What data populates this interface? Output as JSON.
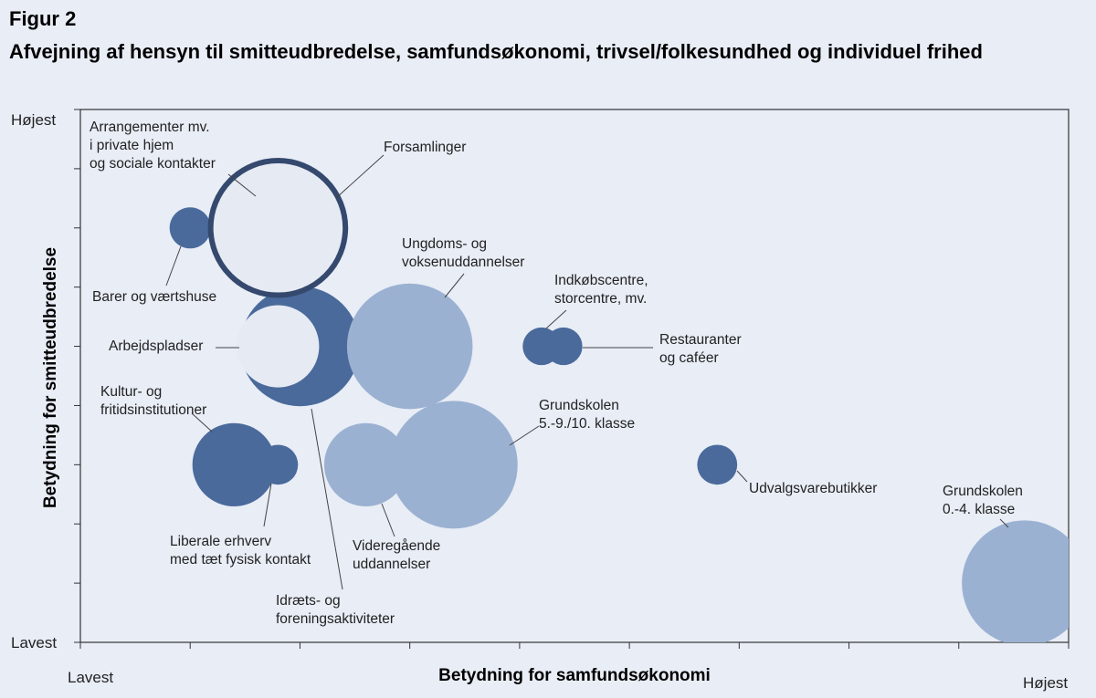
{
  "figure_label": "Figur 2",
  "title": "Afvejning af hensyn til smitteudbredelse, samfundsøkonomi, trivsel/folkesundhed og individuel frihed",
  "colors": {
    "background": "#e8edf6",
    "plot_background": "#e8edf6",
    "dark_blue": "#4a6a9b",
    "light_blue": "#9bb1d2",
    "pale": "#e6eaf3",
    "outline": "#34496d",
    "leader": "#444444"
  },
  "chart_data": {
    "type": "bubble",
    "title": "Afvejning af hensyn til smitteudbredelse, samfundsøkonomi, trivsel/folkesundhed og individuel frihed",
    "xlabel": "Betydning for samfundsøkonomi",
    "ylabel": "Betydning for smitteudbredelse",
    "xlim": [
      0,
      9
    ],
    "ylim": [
      0,
      9
    ],
    "x_low_label": "Lavest",
    "x_high_label": "Højest",
    "y_low_label": "Lavest",
    "y_high_label": "Højest",
    "bubbles": [
      {
        "id": "arbejdspladser-outer",
        "x": 2.0,
        "y": 5,
        "size": 1.05,
        "color": "dark_blue"
      },
      {
        "id": "arbejdspladser-inner",
        "x": 1.8,
        "y": 5,
        "size": 0.72,
        "color": "pale"
      },
      {
        "id": "barer",
        "x": 1.0,
        "y": 7,
        "size": 0.36,
        "color": "dark_blue"
      },
      {
        "id": "forsamlinger",
        "x": 1.8,
        "y": 7,
        "size": 1.18,
        "color": "pale",
        "outline": "outline"
      },
      {
        "id": "ungdoms",
        "x": 3.0,
        "y": 5,
        "size": 1.1,
        "color": "light_blue"
      },
      {
        "id": "indkob",
        "x": 4.2,
        "y": 5,
        "size": 0.33,
        "color": "dark_blue"
      },
      {
        "id": "restauranter",
        "x": 4.4,
        "y": 5,
        "size": 0.33,
        "color": "dark_blue"
      },
      {
        "id": "kultur",
        "x": 1.4,
        "y": 3,
        "size": 0.73,
        "color": "dark_blue"
      },
      {
        "id": "liberale",
        "x": 1.8,
        "y": 3,
        "size": 0.35,
        "color": "dark_blue"
      },
      {
        "id": "videregaende",
        "x": 2.6,
        "y": 3,
        "size": 0.73,
        "color": "light_blue"
      },
      {
        "id": "grundskolen-5-9",
        "x": 3.4,
        "y": 3,
        "size": 1.12,
        "color": "light_blue"
      },
      {
        "id": "udvalgsvarebutikker",
        "x": 5.8,
        "y": 3,
        "size": 0.35,
        "color": "dark_blue"
      },
      {
        "id": "grundskolen-0-4",
        "x": 8.6,
        "y": 1,
        "size": 1.1,
        "color": "light_blue"
      }
    ],
    "annotations": [
      {
        "id": "arrangementer",
        "lines": [
          "Arrangementer mv.",
          "i private hjem",
          "og sociale kontakter"
        ]
      },
      {
        "id": "forsamlinger",
        "lines": [
          "Forsamlinger"
        ]
      },
      {
        "id": "barer",
        "lines": [
          "Barer og værtshuse"
        ]
      },
      {
        "id": "ungdoms",
        "lines": [
          "Ungdoms- og",
          "voksenuddannelser"
        ]
      },
      {
        "id": "indkob",
        "lines": [
          "Indkøbscentre,",
          "storcentre, mv."
        ]
      },
      {
        "id": "restauranter",
        "lines": [
          "Restauranter",
          "og caféer"
        ]
      },
      {
        "id": "arbejdspladser",
        "lines": [
          "Arbejdspladser"
        ]
      },
      {
        "id": "kultur",
        "lines": [
          "Kultur- og",
          "fritidsinstitutioner"
        ]
      },
      {
        "id": "grundskolen-5-9",
        "lines": [
          "Grundskolen",
          "5.-9./10. klasse"
        ]
      },
      {
        "id": "udvalgsvarebutikker",
        "lines": [
          "Udvalgsvarebutikker"
        ]
      },
      {
        "id": "grundskolen-0-4",
        "lines": [
          "Grundskolen",
          "0.-4. klasse"
        ]
      },
      {
        "id": "liberale",
        "lines": [
          "Liberale erhverv",
          "med tæt fysisk kontakt"
        ]
      },
      {
        "id": "videregaende",
        "lines": [
          "Videregående",
          "uddannelser"
        ]
      },
      {
        "id": "idraets",
        "lines": [
          "Idræts- og",
          "foreningsaktiviteter"
        ]
      }
    ]
  }
}
